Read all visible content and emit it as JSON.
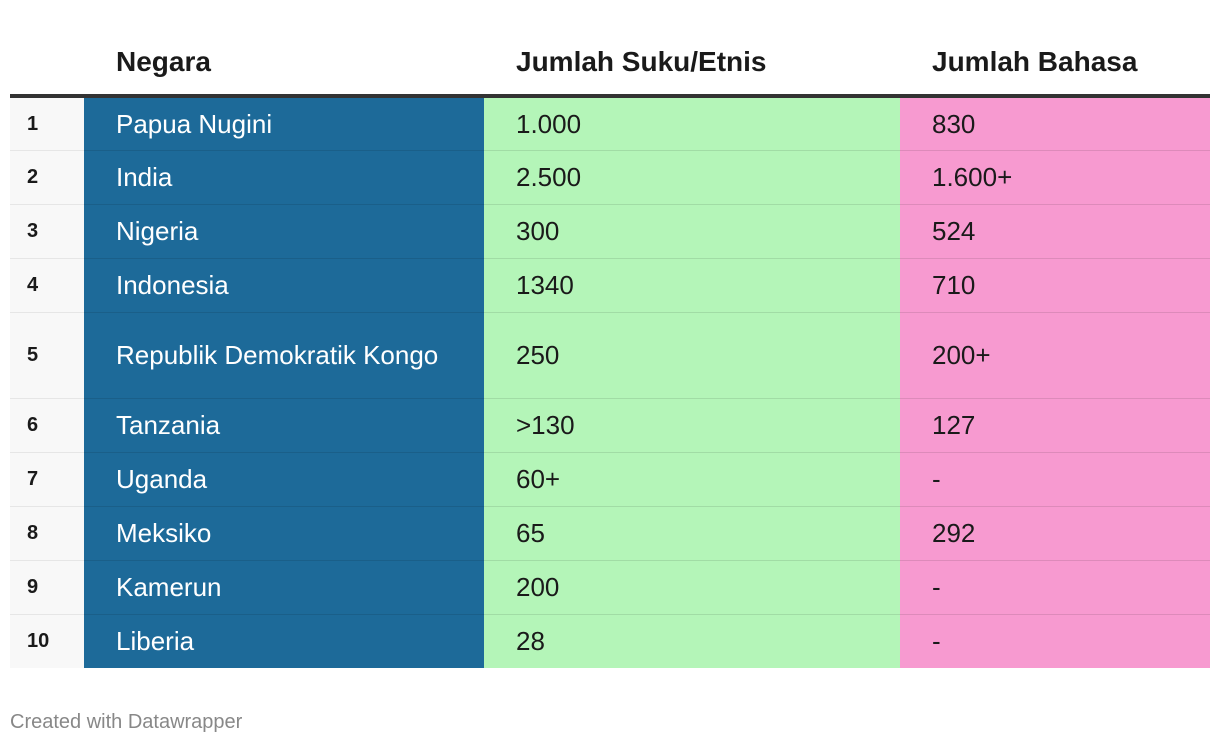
{
  "header": {
    "rank": "",
    "country": "Negara",
    "ethnic": "Jumlah Suku/Etnis",
    "languages": "Jumlah Bahasa"
  },
  "colors": {
    "country": "#1d6a99",
    "ethnic": "#b4f5b8",
    "languages": "#f79ad0"
  },
  "chart_data": {
    "type": "table",
    "columns": [
      "",
      "Negara",
      "Jumlah Suku/Etnis",
      "Jumlah Bahasa"
    ],
    "rows": [
      {
        "rank": "1",
        "country": "Papua Nugini",
        "ethnic": "1.000",
        "languages": "830"
      },
      {
        "rank": "2",
        "country": "India",
        "ethnic": "2.500",
        "languages": "1.600+"
      },
      {
        "rank": "3",
        "country": "Nigeria",
        "ethnic": "300",
        "languages": "524"
      },
      {
        "rank": "4",
        "country": "Indonesia",
        "ethnic": "1340",
        "languages": "710"
      },
      {
        "rank": "5",
        "country": "Republik Demokratik Kongo",
        "ethnic": "250",
        "languages": "200+"
      },
      {
        "rank": "6",
        "country": "Tanzania",
        "ethnic": ">130",
        "languages": "127"
      },
      {
        "rank": "7",
        "country": "Uganda",
        "ethnic": "60+",
        "languages": "-"
      },
      {
        "rank": "8",
        "country": "Meksiko",
        "ethnic": "65",
        "languages": "292"
      },
      {
        "rank": "9",
        "country": "Kamerun",
        "ethnic": "200",
        "languages": "-"
      },
      {
        "rank": "10",
        "country": "Liberia",
        "ethnic": "28",
        "languages": "-"
      }
    ]
  },
  "footer": {
    "credit": "Created with Datawrapper"
  }
}
